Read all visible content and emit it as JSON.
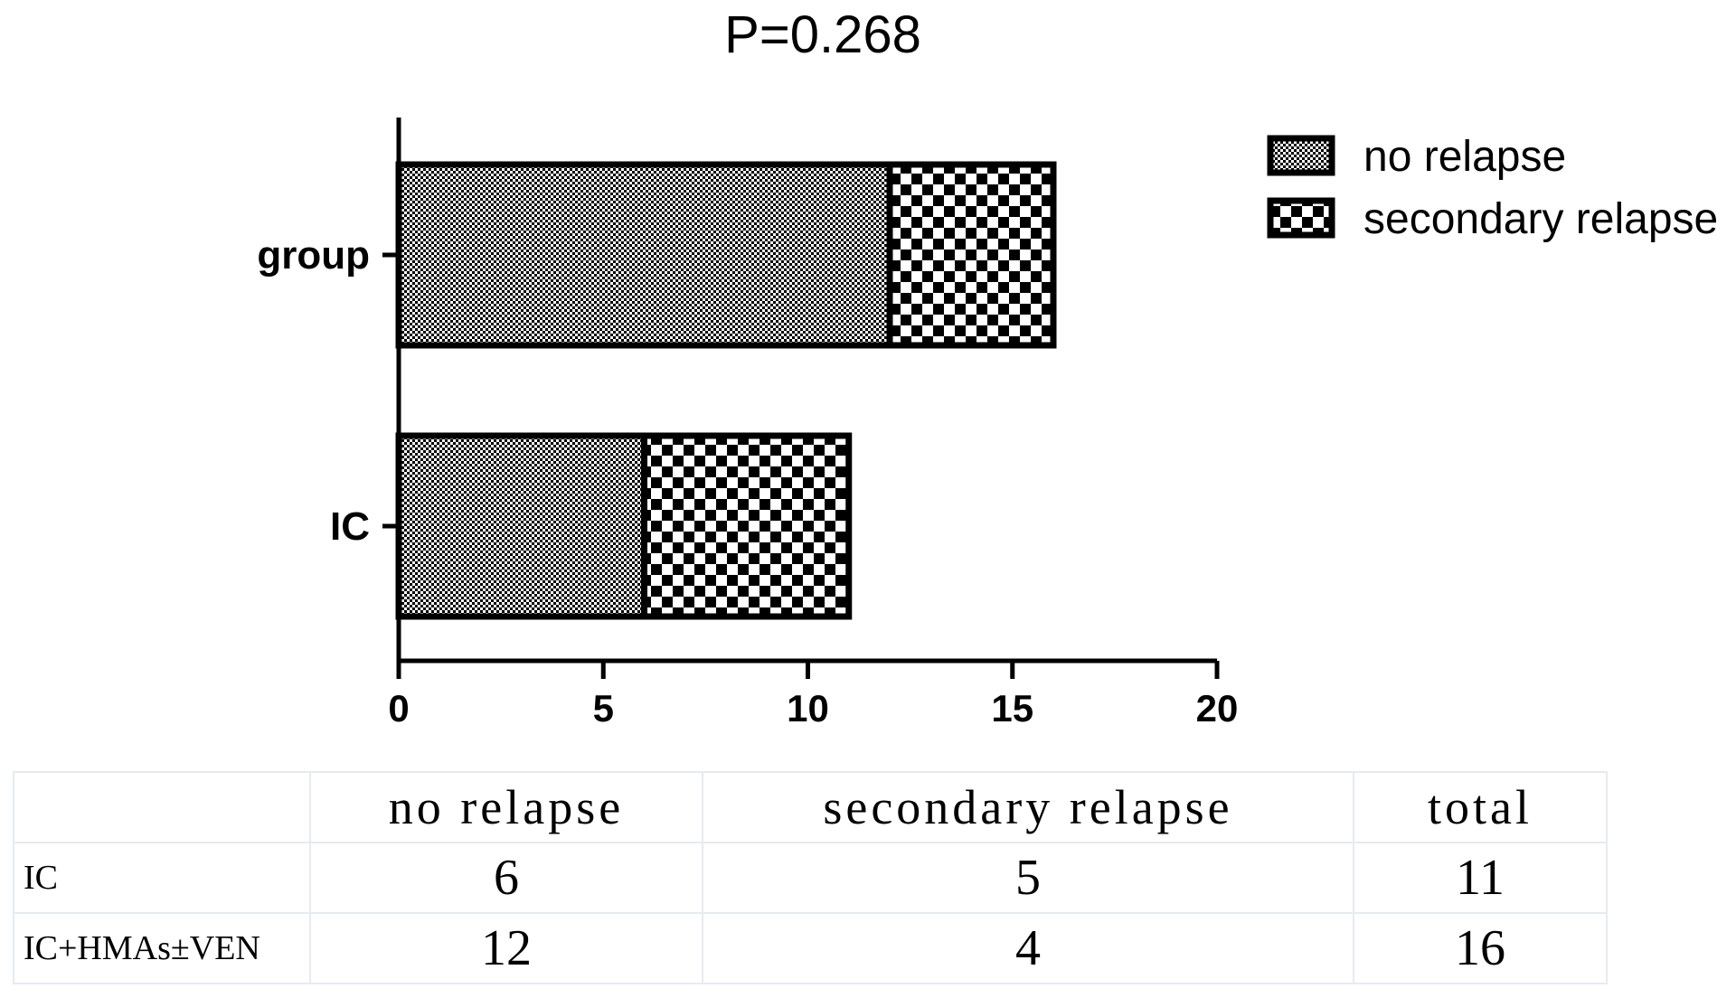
{
  "chart_data": {
    "type": "bar",
    "orientation": "horizontal",
    "stacked": true,
    "title": "P=0.268",
    "categories": [
      "group",
      "IC"
    ],
    "series": [
      {
        "name": "no relapse",
        "values": [
          12,
          6
        ],
        "pattern": "fine-checker"
      },
      {
        "name": "secondary relapse",
        "values": [
          4,
          5
        ],
        "pattern": "coarse-checker"
      }
    ],
    "xlim": [
      0,
      20
    ],
    "xticks": [
      0,
      5,
      10,
      15,
      20
    ],
    "xlabel": "",
    "ylabel": "",
    "grid": false,
    "legend": "top-right"
  },
  "table": {
    "headers": [
      "",
      "no relapse",
      "secondary relapse",
      "total"
    ],
    "rows": [
      {
        "label": "IC",
        "no_relapse": "6",
        "secondary_relapse": "5",
        "total": "11"
      },
      {
        "label": "IC+HMAs±VEN",
        "no_relapse": "12",
        "secondary_relapse": "4",
        "total": "16"
      }
    ]
  }
}
